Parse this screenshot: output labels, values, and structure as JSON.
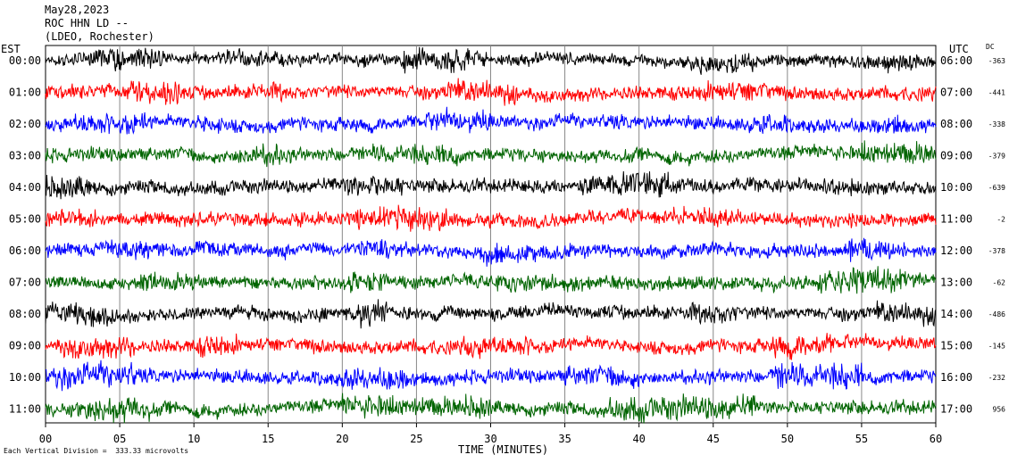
{
  "header": {
    "date": "May28,2023",
    "station": "ROC HHN LD --",
    "network": "(LDEO, Rochester)"
  },
  "labels": {
    "est": "EST",
    "utc": "UTC",
    "dc": "DC",
    "xlabel": "TIME (MINUTES)",
    "footer": "Each Vertical Division =  333.33 microvolts"
  },
  "chart_data": {
    "type": "line",
    "title": "ROC HHN LD --",
    "xlabel": "TIME (MINUTES)",
    "xlim": [
      0,
      60
    ],
    "x_ticks": [
      "00",
      "05",
      "10",
      "15",
      "20",
      "25",
      "30",
      "35",
      "40",
      "45",
      "50",
      "55",
      "60"
    ],
    "rows": [
      {
        "est": "00:00",
        "utc": "06:00",
        "dc": "-363",
        "color": "#000000",
        "amp": 8,
        "bursts": [
          [
            3,
            8,
            1.8
          ],
          [
            12,
            17,
            1.5
          ],
          [
            24,
            30,
            2.0
          ],
          [
            43,
            48,
            1.6
          ],
          [
            55,
            59,
            1.5
          ]
        ]
      },
      {
        "est": "01:00",
        "utc": "07:00",
        "dc": "-441",
        "color": "#ff0000",
        "amp": 9,
        "bursts": [
          [
            5,
            9,
            1.8
          ],
          [
            14,
            16,
            1.4
          ],
          [
            27,
            32,
            1.7
          ],
          [
            44,
            49,
            1.5
          ]
        ]
      },
      {
        "est": "02:00",
        "utc": "08:00",
        "dc": "-338",
        "color": "#0000ff",
        "amp": 9,
        "bursts": [
          [
            2,
            7,
            1.6
          ],
          [
            10,
            12,
            1.4
          ],
          [
            26,
            30,
            1.6
          ],
          [
            47,
            50,
            1.5
          ],
          [
            56,
            58,
            1.6
          ]
        ]
      },
      {
        "est": "03:00",
        "utc": "09:00",
        "dc": "-379",
        "color": "#006400",
        "amp": 9,
        "bursts": [
          [
            13,
            16,
            1.6
          ],
          [
            22,
            28,
            1.5
          ],
          [
            55,
            60,
            1.8
          ]
        ]
      },
      {
        "est": "04:00",
        "utc": "10:00",
        "dc": "-639",
        "color": "#000000",
        "amp": 9,
        "bursts": [
          [
            0,
            3,
            1.6
          ],
          [
            20,
            24,
            1.6
          ],
          [
            36,
            42,
            1.8
          ],
          [
            52,
            56,
            1.4
          ]
        ]
      },
      {
        "est": "05:00",
        "utc": "11:00",
        "dc": "-2",
        "color": "#ff0000",
        "amp": 9,
        "bursts": [
          [
            0,
            4,
            1.5
          ],
          [
            21,
            27,
            1.8
          ],
          [
            42,
            47,
            1.5
          ]
        ]
      },
      {
        "est": "06:00",
        "utc": "12:00",
        "dc": "-378",
        "color": "#0000ff",
        "amp": 9,
        "bursts": [
          [
            4,
            7,
            1.5
          ],
          [
            21,
            24,
            1.5
          ],
          [
            29,
            33,
            1.6
          ],
          [
            54,
            57,
            1.8
          ]
        ]
      },
      {
        "est": "07:00",
        "utc": "13:00",
        "dc": "-62",
        "color": "#006400",
        "amp": 9,
        "bursts": [
          [
            6,
            10,
            1.6
          ],
          [
            20,
            23,
            1.5
          ],
          [
            30,
            36,
            1.4
          ],
          [
            52,
            58,
            2.0
          ]
        ]
      },
      {
        "est": "08:00",
        "utc": "14:00",
        "dc": "-486",
        "color": "#000000",
        "amp": 9,
        "bursts": [
          [
            0,
            5,
            1.6
          ],
          [
            21,
            23,
            2.2
          ],
          [
            43,
            47,
            1.5
          ],
          [
            56,
            60,
            1.6
          ]
        ]
      },
      {
        "est": "09:00",
        "utc": "15:00",
        "dc": "-145",
        "color": "#ff0000",
        "amp": 9,
        "bursts": [
          [
            1,
            6,
            1.6
          ],
          [
            10,
            13,
            1.5
          ],
          [
            28,
            33,
            1.5
          ],
          [
            49,
            53,
            1.7
          ]
        ]
      },
      {
        "est": "10:00",
        "utc": "16:00",
        "dc": "-232",
        "color": "#0000ff",
        "amp": 9,
        "bursts": [
          [
            0,
            6,
            1.8
          ],
          [
            20,
            25,
            1.6
          ],
          [
            35,
            40,
            1.6
          ],
          [
            49,
            55,
            2.0
          ]
        ]
      },
      {
        "est": "11:00",
        "utc": "17:00",
        "dc": "956",
        "color": "#006400",
        "amp": 9,
        "bursts": [
          [
            2,
            7,
            2.0
          ],
          [
            20,
            30,
            1.6
          ],
          [
            38,
            48,
            1.8
          ]
        ]
      }
    ]
  }
}
